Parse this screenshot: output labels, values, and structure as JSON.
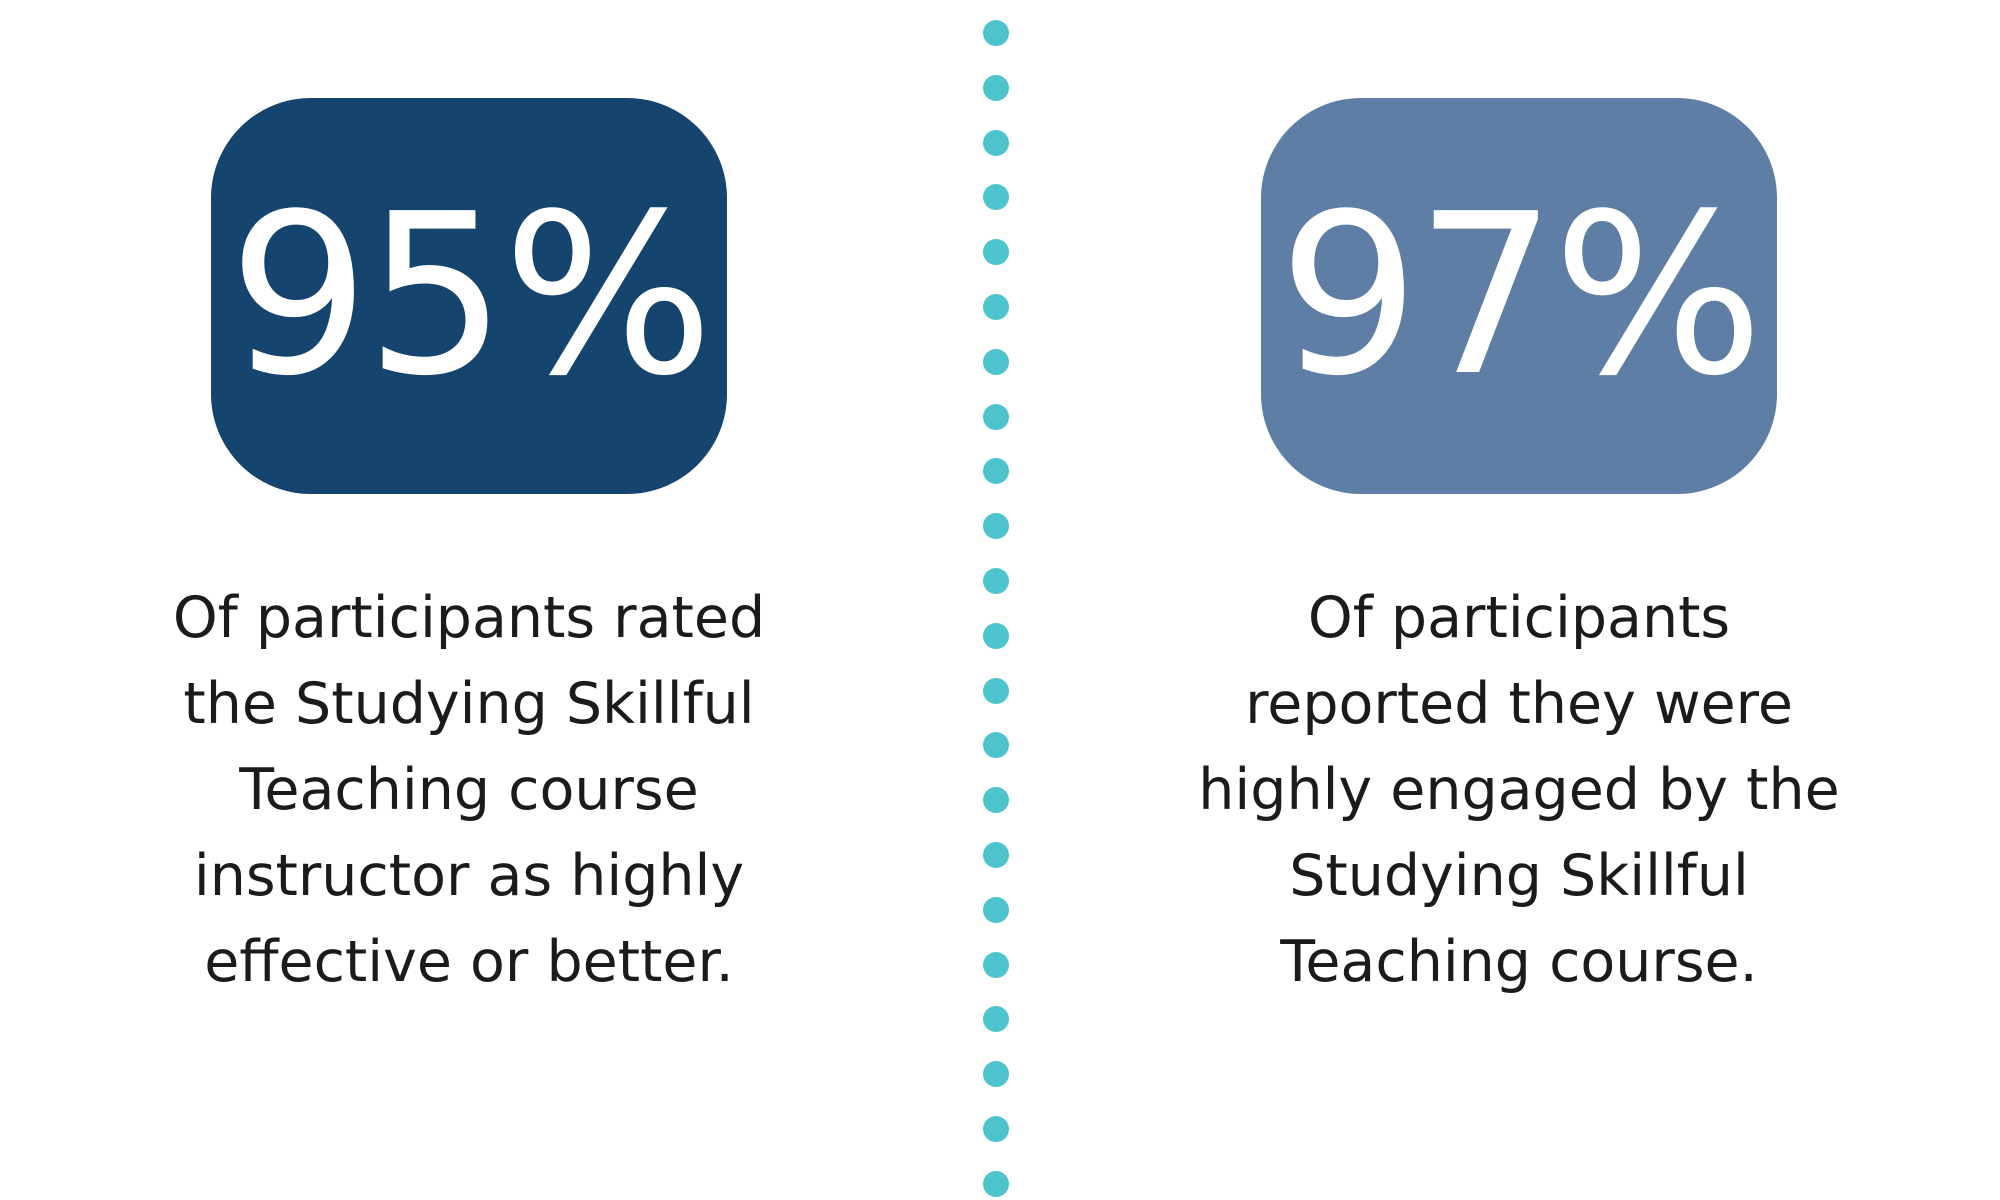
{
  "accent_color": "#4cc3cd",
  "left_stat": {
    "value": "95%",
    "color": "#15446f",
    "caption_lines": [
      "Of participants rated",
      "the Studying Skillful",
      "Teaching course",
      "instructor as highly",
      "effective or better."
    ]
  },
  "right_stat": {
    "value": "97%",
    "color": "#5e7ea6",
    "caption_lines": [
      "Of participants",
      "reported they were",
      "highly engaged by the",
      "Studying Skillful",
      "Teaching course."
    ]
  }
}
